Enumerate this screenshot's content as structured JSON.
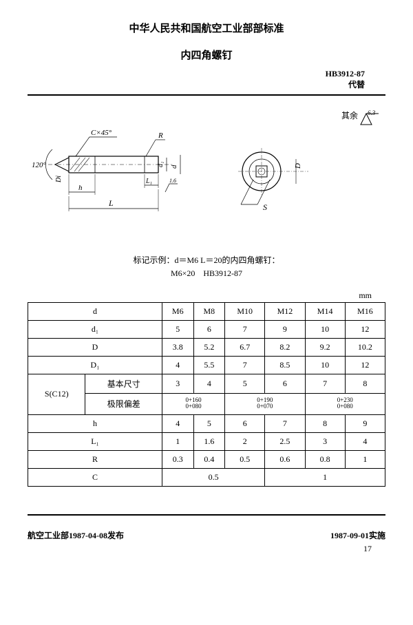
{
  "header": {
    "org_title": "中华人民共和国航空工业部部标准",
    "part_title": "内四角螺钉",
    "std_code": "HB3912-87",
    "supersede": "代替"
  },
  "surface_finish": {
    "label": "其余",
    "value": "6.3"
  },
  "diagram": {
    "angle": "120°",
    "chamfer": "C×45°",
    "dim_R": "R",
    "dim_d1": "d₁",
    "dim_d": "d",
    "dim_D": "D",
    "dim_Di": "Di",
    "dim_h": "h",
    "dim_L1": "L₁",
    "dim_L": "L",
    "dim_S": "S",
    "ra": "1.6"
  },
  "marking": {
    "line1": "标记示例：d＝M6 L＝20的内四角螺钉：",
    "line2": "M6×20　HB3912-87"
  },
  "unit": "mm",
  "table": {
    "header_row": [
      "d",
      "M6",
      "M8",
      "M10",
      "M12",
      "M14",
      "M16"
    ],
    "rows": [
      {
        "label": "d₁",
        "cells": [
          "5",
          "6",
          "7",
          "9",
          "10",
          "12"
        ]
      },
      {
        "label": "D",
        "cells": [
          "3.8",
          "5.2",
          "6.7",
          "8.2",
          "9.2",
          "10.2"
        ]
      },
      {
        "label": "D₁",
        "cells": [
          "4",
          "5.5",
          "7",
          "8.5",
          "10",
          "12"
        ]
      }
    ],
    "s_group": {
      "group_label": "S(C12)",
      "basic_label": "基本尺寸",
      "basic_cells": [
        "3",
        "4",
        "5",
        "6",
        "7",
        "8"
      ],
      "tol_label": "极限偏差",
      "tol_cells": [
        {
          "span": 2,
          "upper": "0+160",
          "lower": "0+080"
        },
        {
          "span": 2,
          "upper": "0+190",
          "lower": "0+070"
        },
        {
          "span": 2,
          "upper": "0+230",
          "lower": "0+080"
        }
      ]
    },
    "rows2": [
      {
        "label": "h",
        "cells": [
          "4",
          "5",
          "6",
          "7",
          "8",
          "9"
        ]
      },
      {
        "label": "L₁",
        "cells": [
          "1",
          "1.6",
          "2",
          "2.5",
          "3",
          "4"
        ]
      },
      {
        "label": "R",
        "cells": [
          "0.3",
          "0.4",
          "0.5",
          "0.6",
          "0.8",
          "1"
        ]
      }
    ],
    "c_row": {
      "label": "C",
      "cells": [
        {
          "span": 3,
          "val": "0.5"
        },
        {
          "span": 3,
          "val": "1"
        }
      ]
    }
  },
  "footer": {
    "issued": "航空工业部1987-04-08发布",
    "effective": "1987-09-01实施",
    "page": "17"
  }
}
